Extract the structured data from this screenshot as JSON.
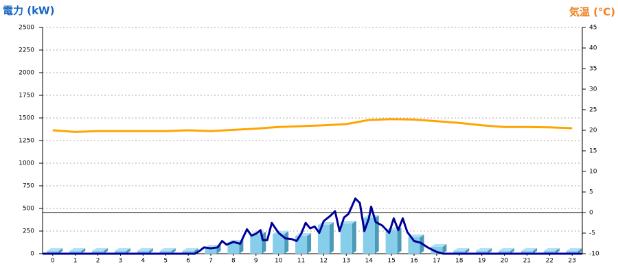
{
  "chart_data": {
    "type": "bar",
    "title_left": "電力 (kW)",
    "title_right": "気温 (℃)",
    "categories": [
      "0",
      "1",
      "2",
      "3",
      "4",
      "5",
      "6",
      "7",
      "8",
      "9",
      "10",
      "11",
      "12",
      "13",
      "14",
      "15",
      "16",
      "17",
      "18",
      "19",
      "20",
      "21",
      "22",
      "23"
    ],
    "xlim": [
      -0.45,
      23.45
    ],
    "ylim": [
      0,
      2500
    ],
    "yticks": [
      0,
      250,
      500,
      750,
      1000,
      1250,
      1500,
      1750,
      2000,
      2250,
      2500
    ],
    "y2lim": [
      -10,
      45
    ],
    "y2ticks": [
      -10,
      -5,
      0,
      5,
      10,
      15,
      20,
      25,
      30,
      35,
      40,
      45
    ],
    "grid": true,
    "series": [
      {
        "type": "bar",
        "color": "#87ceeb",
        "values": [
          30,
          30,
          30,
          30,
          30,
          30,
          30,
          68,
          121,
          212,
          220,
          197,
          318,
          333,
          394,
          258,
          182,
          76,
          30,
          30,
          30,
          30,
          30,
          30
        ]
      },
      {
        "type": "line",
        "color": "#000099",
        "x": [
          -0.45,
          6.3,
          6.5,
          6.7,
          7,
          7.3,
          7.5,
          7.7,
          8,
          8.3,
          8.6,
          8.8,
          9,
          9.2,
          9.3,
          9.5,
          9.7,
          10,
          10.3,
          10.6,
          10.8,
          11,
          11.2,
          11.4,
          11.6,
          11.8,
          12,
          12.3,
          12.5,
          12.7,
          12.9,
          13.1,
          13.4,
          13.6,
          13.8,
          14,
          14.1,
          14.3,
          14.6,
          14.9,
          15.1,
          15.3,
          15.5,
          15.7,
          16,
          16.3,
          16.6,
          17,
          17.3,
          23.45
        ],
        "values": [
          0,
          0,
          30,
          70,
          60,
          70,
          140,
          100,
          130,
          110,
          270,
          200,
          220,
          260,
          150,
          150,
          340,
          230,
          170,
          160,
          140,
          220,
          340,
          280,
          300,
          230,
          360,
          420,
          470,
          250,
          400,
          440,
          610,
          560,
          250,
          390,
          520,
          350,
          310,
          230,
          390,
          260,
          390,
          240,
          140,
          120,
          70,
          20,
          0,
          0
        ]
      },
      {
        "type": "line",
        "axis": "y2",
        "color": "#ffa500",
        "x": [
          0,
          1,
          2,
          3,
          4,
          5,
          6,
          7,
          8,
          9,
          10,
          11,
          12,
          13,
          14,
          15,
          16,
          17,
          18,
          19,
          20,
          21,
          22,
          23
        ],
        "values": [
          20,
          19.6,
          19.8,
          19.8,
          19.8,
          19.8,
          20,
          19.8,
          20.1,
          20.4,
          20.8,
          21,
          21.2,
          21.5,
          22.5,
          22.7,
          22.6,
          22.2,
          21.8,
          21.2,
          20.8,
          20.8,
          20.7,
          20.5
        ]
      }
    ]
  }
}
